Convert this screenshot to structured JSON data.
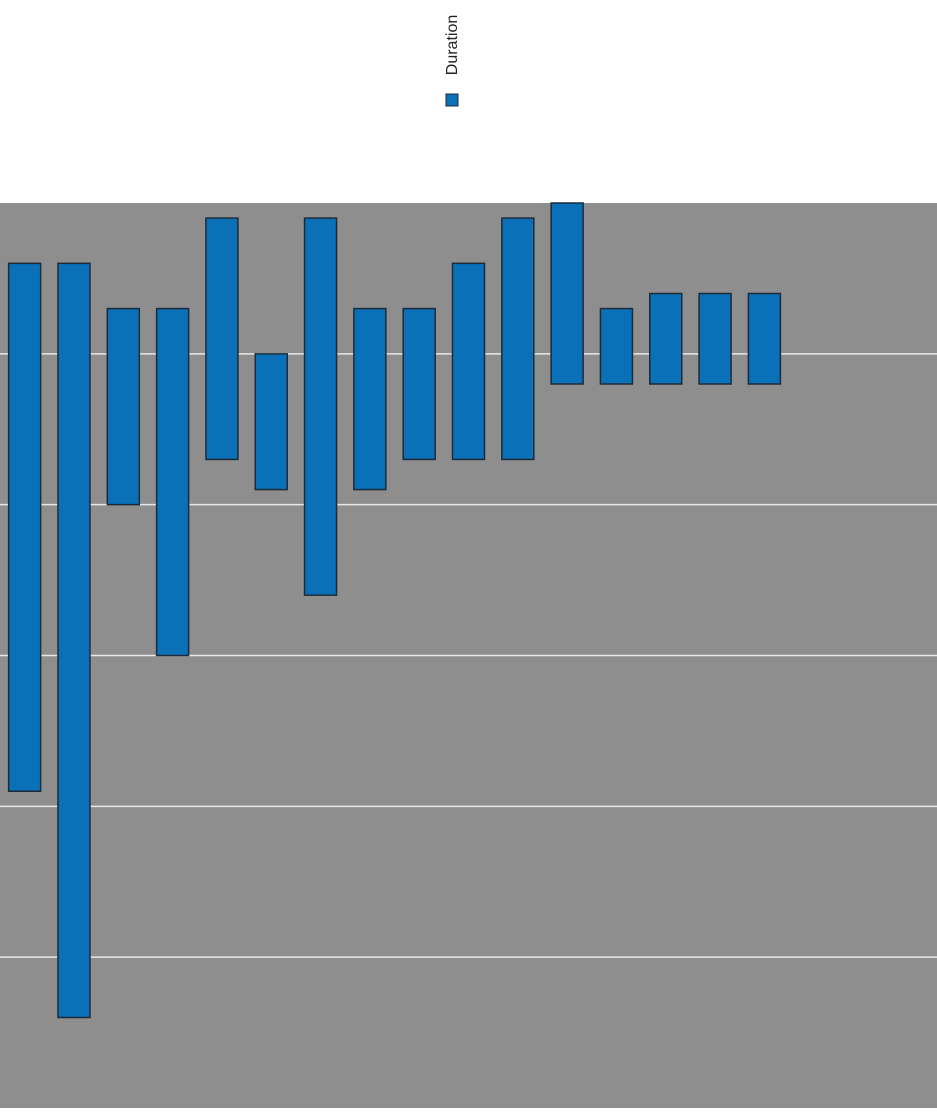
{
  "chart_data": {
    "type": "floating-bar",
    "legend": "top",
    "categories": [
      null,
      null,
      null,
      null,
      null,
      null,
      null,
      null,
      null,
      null,
      null,
      null,
      null,
      null,
      null,
      null,
      null,
      null,
      null
    ],
    "series": [
      {
        "name": "Duration",
        "color": "#0a70b8",
        "base": [
          2.1,
          0.6,
          4.0,
          3.0,
          4.3,
          4.1,
          3.4,
          4.1,
          4.3,
          4.3,
          4.3,
          4.8,
          4.8,
          4.8,
          4.8,
          4.8,
          null,
          null,
          null
        ],
        "values": [
          3.5,
          5.0,
          1.3,
          2.3,
          1.6,
          0.9,
          2.5,
          1.2,
          1.0,
          1.3,
          1.6,
          1.2,
          0.5,
          0.6,
          0.6,
          0.6,
          null,
          null,
          null
        ]
      }
    ],
    "ylim": [
      0,
      6
    ],
    "yticks": [
      1,
      2,
      3,
      4,
      5
    ],
    "grid": true
  }
}
